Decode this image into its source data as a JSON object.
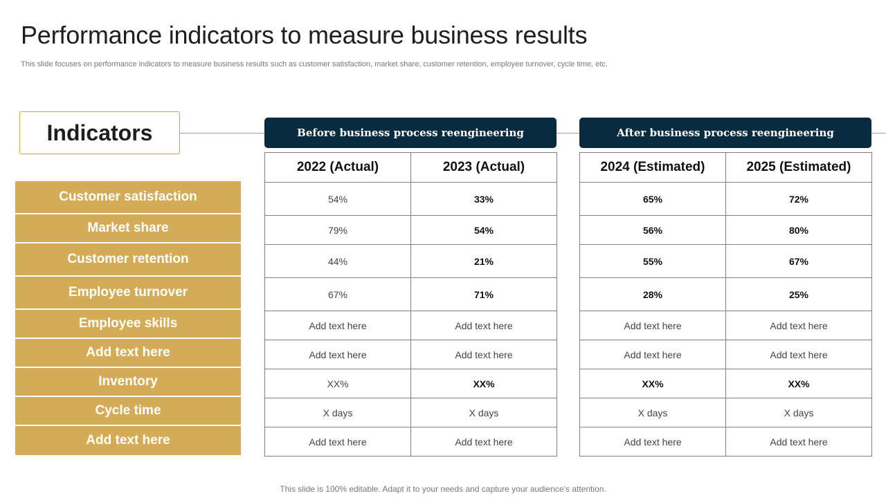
{
  "title": "Performance indicators to measure business results",
  "subtitle": "This slide focuses on performance indicators to measure business results such as customer satisfaction, market share, customer retention, employee turnover, cycle time, etc.",
  "indicators_heading": "Indicators",
  "before_header": "Before business process reengineering",
  "after_header": "After business process reengineering",
  "columns": {
    "c2022": "2022 (Actual)",
    "c2023": "2023 (Actual)",
    "c2024": "2024 (Estimated)",
    "c2025": "2025 (Estimated)"
  },
  "rows": [
    {
      "label": "Customer satisfaction",
      "v2022": "54%",
      "v2023": "33%",
      "v2024": "65%",
      "v2025": "72%"
    },
    {
      "label": "Market share",
      "v2022": "79%",
      "v2023": "54%",
      "v2024": "56%",
      "v2025": "80%"
    },
    {
      "label": "Customer retention",
      "v2022": "44%",
      "v2023": "21%",
      "v2024": "55%",
      "v2025": "67%"
    },
    {
      "label": "Employee turnover",
      "v2022": "67%",
      "v2023": "71%",
      "v2024": "28%",
      "v2025": "25%"
    },
    {
      "label": "Employee skills",
      "v2022": "Add text here",
      "v2023": "Add text here",
      "v2024": "Add text here",
      "v2025": "Add text here"
    },
    {
      "label": "Add text here",
      "v2022": "Add text here",
      "v2023": "Add text here",
      "v2024": "Add text here",
      "v2025": "Add text here"
    },
    {
      "label": "Inventory",
      "v2022": "XX%",
      "v2023": "XX%",
      "v2024": "XX%",
      "v2025": "XX%"
    },
    {
      "label": "Cycle time",
      "v2022": "X days",
      "v2023": "X days",
      "v2024": "X days",
      "v2025": "X days"
    },
    {
      "label": "Add text here",
      "v2022": "Add text here",
      "v2023": "Add text here",
      "v2024": "Add text here",
      "v2025": "Add text here"
    }
  ],
  "footer": "This slide is 100% editable. Adapt it to your needs and capture your audience’s attention.",
  "colors": {
    "gold": "#d4ac57",
    "navy": "#082b3f"
  }
}
